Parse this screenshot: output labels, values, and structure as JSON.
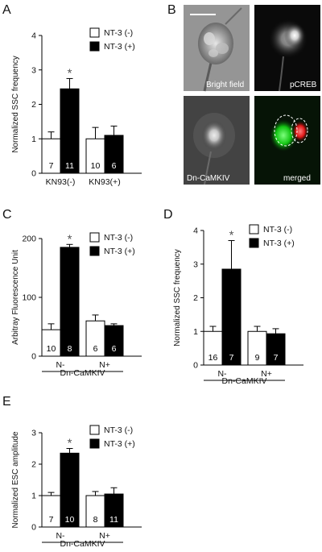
{
  "panels": {
    "A": "A",
    "B": "B",
    "C": "C",
    "D": "D",
    "E": "E"
  },
  "images": {
    "bright_field": "Bright field",
    "pcreb": "pCREB",
    "dn_camkiv": "Dn-CaMKIV",
    "merged": "merged"
  },
  "chart_data": [
    {
      "id": "A",
      "type": "bar",
      "ylabel": "Normalized SSC frequency",
      "ylim": [
        0,
        4
      ],
      "yticks": [
        0,
        1,
        2,
        3,
        4
      ],
      "categories": [
        "KN93(-)",
        "KN93(+)"
      ],
      "group_label": "",
      "legend": [
        "NT-3 (-)",
        "NT-3 (+)"
      ],
      "series": [
        {
          "values": [
            1.0,
            1.0
          ],
          "errors": [
            0.2,
            0.33
          ],
          "n": [
            "7",
            "10"
          ]
        },
        {
          "values": [
            2.45,
            1.1
          ],
          "errors": [
            0.3,
            0.27
          ],
          "n": [
            "11",
            "6"
          ]
        }
      ],
      "significance": [
        {
          "category": 0,
          "series": 1,
          "mark": "*"
        }
      ]
    },
    {
      "id": "C",
      "type": "bar",
      "ylabel": "Arbitray Fluorescence Unit",
      "ylim": [
        0,
        200
      ],
      "yticks": [
        0,
        100,
        200
      ],
      "categories": [
        "N-",
        "N+"
      ],
      "group_label": "Dn-CaMKIV",
      "legend": [
        "NT-3 (-)",
        "NT-3 (+)"
      ],
      "series": [
        {
          "values": [
            45,
            60
          ],
          "errors": [
            10,
            10
          ],
          "n": [
            "10",
            "6"
          ]
        },
        {
          "values": [
            185,
            52
          ],
          "errors": [
            5,
            3
          ],
          "n": [
            "8",
            "6"
          ]
        }
      ],
      "significance": [
        {
          "category": 0,
          "series": 1,
          "mark": "*"
        }
      ]
    },
    {
      "id": "D",
      "type": "bar",
      "ylabel": "Normalized SSC frequency",
      "ylim": [
        0,
        4
      ],
      "yticks": [
        0,
        1,
        2,
        3,
        4
      ],
      "categories": [
        "N-",
        "N+"
      ],
      "group_label": "Dn-CaMKIV",
      "legend": [
        "NT-3 (-)",
        "NT-3 (+)"
      ],
      "series": [
        {
          "values": [
            1.0,
            1.0
          ],
          "errors": [
            0.15,
            0.15
          ],
          "n": [
            "16",
            "9"
          ]
        },
        {
          "values": [
            2.85,
            0.93
          ],
          "errors": [
            0.85,
            0.15
          ],
          "n": [
            "7",
            "7"
          ]
        }
      ],
      "significance": [
        {
          "category": 0,
          "series": 1,
          "mark": "*"
        }
      ]
    },
    {
      "id": "E",
      "type": "bar",
      "ylabel": "Normalized ESC amplitude",
      "ylim": [
        0,
        3
      ],
      "yticks": [
        0,
        1,
        2,
        3
      ],
      "categories": [
        "N-",
        "N+"
      ],
      "group_label": "Dn-CaMKIV",
      "legend": [
        "NT-3 (-)",
        "NT-3 (+)"
      ],
      "series": [
        {
          "values": [
            1.0,
            1.0
          ],
          "errors": [
            0.1,
            0.13
          ],
          "n": [
            "7",
            "8"
          ]
        },
        {
          "values": [
            2.35,
            1.05
          ],
          "errors": [
            0.15,
            0.2
          ],
          "n": [
            "10",
            "11"
          ]
        }
      ],
      "significance": [
        {
          "category": 0,
          "series": 1,
          "mark": "*"
        }
      ]
    }
  ]
}
